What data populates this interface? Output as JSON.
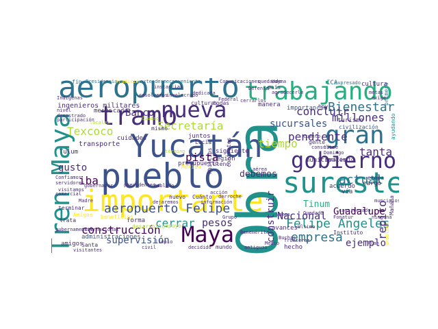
{
  "cloud": {
    "colors": {
      "purple": "#440154",
      "indigo": "#472d7b",
      "blue": "#3b528b",
      "steel": "#2c728e",
      "teal": "#21918c",
      "green": "#28ae80",
      "lime": "#5ec962",
      "yellowgreen": "#addc30",
      "yellow": "#fde725"
    },
    "words": [
      {
        "text": "Obra",
        "color": "teal"
      },
      {
        "text": "aeropuerto",
        "color": "steel"
      },
      {
        "text": "Yucatán",
        "color": "blue"
      },
      {
        "text": "pueblo",
        "color": "blue"
      },
      {
        "text": "importante",
        "color": "yellow"
      },
      {
        "text": "Tren Maya",
        "color": "teal"
      },
      {
        "text": "trabajando",
        "color": "green"
      },
      {
        "text": "tramo",
        "color": "indigo"
      },
      {
        "text": "nueva",
        "color": "indigo"
      },
      {
        "text": "sureste",
        "color": "teal"
      },
      {
        "text": "gobierno",
        "color": "indigo"
      },
      {
        "text": "gran",
        "color": "steel"
      },
      {
        "text": "Maya",
        "color": "purple"
      },
      {
        "text": "Felipe Angeles",
        "color": "teal"
      },
      {
        "text": "construcción",
        "color": "purple"
      },
      {
        "text": "aeropuerto Felipe",
        "color": "blue"
      },
      {
        "text": "empresa",
        "color": "steel"
      },
      {
        "text": "Bienestar",
        "color": "steel"
      },
      {
        "text": "Secretaría",
        "color": "yellowgreen"
      },
      {
        "text": "millones",
        "color": "indigo"
      },
      {
        "text": "Texcoco",
        "color": "yellowgreen"
      },
      {
        "text": "sucursales",
        "color": "blue"
      },
      {
        "text": "tiempo",
        "color": "yellowgreen"
      },
      {
        "text": "pista",
        "color": "purple"
      },
      {
        "text": "Banco",
        "color": "indigo"
      },
      {
        "text": "concluir",
        "color": "indigo"
      },
      {
        "text": "actual",
        "color": "steel"
      },
      {
        "text": "pendiente",
        "color": "indigo"
      },
      {
        "text": "tanta",
        "color": "indigo"
      },
      {
        "text": "Guadalupe",
        "color": "purple"
      },
      {
        "text": "Nacional",
        "color": "indigo"
      },
      {
        "text": "repito",
        "color": "indigo"
      },
      {
        "text": "cerrar",
        "color": "teal"
      },
      {
        "text": "pesos",
        "color": "indigo"
      },
      {
        "text": "supervisión",
        "color": "blue"
      },
      {
        "text": "ejemplo",
        "color": "indigo"
      },
      {
        "text": "gusto",
        "color": "indigo"
      },
      {
        "text": "iba",
        "color": "purple"
      },
      {
        "text": "debemos",
        "color": "indigo"
      },
      {
        "text": "construir",
        "color": "indigo"
      },
      {
        "text": "Tinum",
        "color": "green"
      },
      {
        "text": "ingenieros militares",
        "color": "indigo"
      },
      {
        "text": "administraciones",
        "color": "blue"
      },
      {
        "text": "transporte",
        "color": "indigo"
      },
      {
        "text": "presupuesto",
        "color": "indigo"
      },
      {
        "text": "municipales",
        "color": "indigo"
      },
      {
        "text": "siguiente",
        "color": "indigo"
      },
      {
        "text": "región",
        "color": "indigo"
      },
      {
        "text": "importancia",
        "color": "blue"
      },
      {
        "text": "turismo",
        "color": "indigo"
      },
      {
        "text": "cultura",
        "color": "indigo"
      },
      {
        "text": "civilización",
        "color": "blue"
      },
      {
        "text": "manera",
        "color": "indigo"
      },
      {
        "text": "contratos",
        "color": "indigo"
      },
      {
        "text": "cuidades",
        "color": "indigo"
      },
      {
        "text": "mismo",
        "color": "indigo"
      },
      {
        "text": "Tulum",
        "color": "indigo"
      },
      {
        "text": "juntos",
        "color": "indigo"
      },
      {
        "text": "avances",
        "color": "indigo"
      },
      {
        "text": "hecho",
        "color": "indigo"
      },
      {
        "text": "mundo",
        "color": "indigo"
      },
      {
        "text": "Cuánto",
        "color": "indigo"
      },
      {
        "text": "nuevo",
        "color": "indigo"
      },
      {
        "text": "acuerdo",
        "color": "indigo"
      },
      {
        "text": "vía",
        "color": "indigo"
      },
      {
        "text": "cargo",
        "color": "indigo"
      },
      {
        "text": "etapa",
        "color": "indigo"
      },
      {
        "text": "amigos",
        "color": "indigo"
      },
      {
        "text": "Santa",
        "color": "indigo"
      },
      {
        "text": "forma",
        "color": "indigo"
      },
      {
        "text": "Phillips",
        "color": "indigo"
      },
      {
        "text": "meses",
        "color": "indigo"
      },
      {
        "text": "cada",
        "color": "indigo"
      },
      {
        "text": "Lucía",
        "color": "indigo"
      },
      {
        "text": "beneficios",
        "color": "yellow"
      },
      {
        "text": "desarrollo",
        "color": "yellowgreen"
      },
      {
        "text": "apoyo",
        "color": "yellowgreen"
      },
      {
        "text": "Mérida",
        "color": "yellow"
      },
      {
        "text": "Amigas",
        "color": "yellow"
      },
      {
        "text": "todas",
        "color": "indigo"
      },
      {
        "text": "culturas",
        "color": "indigo"
      },
      {
        "text": "hoy",
        "color": "indigo"
      },
      {
        "text": "internacional",
        "color": "indigo"
      },
      {
        "text": "gubernamental",
        "color": "indigo"
      },
      {
        "text": "trata",
        "color": "indigo"
      },
      {
        "text": "terminar",
        "color": "indigo"
      },
      {
        "text": "visitamos",
        "color": "indigo"
      },
      {
        "text": "servidores",
        "color": "indigo"
      },
      {
        "text": "Madre",
        "color": "indigo"
      },
      {
        "text": "Confiamos",
        "color": "indigo"
      },
      {
        "text": "gobernador",
        "color": "indigo"
      },
      {
        "text": "presidentes",
        "color": "indigo"
      },
      {
        "text": "fin",
        "color": "steel"
      },
      {
        "text": "Presidencia",
        "color": "steel"
      },
      {
        "text": "tradición",
        "color": "yellow"
      },
      {
        "text": "extenderme",
        "color": "steel"
      },
      {
        "text": "conveniente",
        "color": "steel"
      },
      {
        "text": "Comunicaciones",
        "color": "indigo"
      },
      {
        "text": "quedando",
        "color": "indigo"
      },
      {
        "text": "Uayma",
        "color": "indigo"
      },
      {
        "text": "ICA",
        "color": "steel"
      },
      {
        "text": "expresado",
        "color": "steel"
      },
      {
        "text": "primera",
        "color": "steel"
      },
      {
        "text": "exige",
        "color": "indigo"
      },
      {
        "text": "metas",
        "color": "indigo"
      },
      {
        "text": "dedicada",
        "color": "indigo"
      },
      {
        "text": "Federal",
        "color": "indigo"
      },
      {
        "text": "Defensa",
        "color": "indigo"
      },
      {
        "text": "país",
        "color": "indigo"
      },
      {
        "text": "cerrarlos",
        "color": "indigo"
      },
      {
        "text": "Indígenas",
        "color": "indigo"
      },
      {
        "text": "nivel",
        "color": "indigo"
      },
      {
        "text": "participación",
        "color": "indigo"
      },
      {
        "text": "demostrado",
        "color": "indigo"
      },
      {
        "text": "locales",
        "color": "yellowgreen"
      },
      {
        "text": "Ciudad",
        "color": "yellowgreen"
      },
      {
        "text": "término",
        "color": "yellowgreen"
      },
      {
        "text": "instancias",
        "color": "indigo"
      },
      {
        "text": "involucrado",
        "color": "indigo"
      },
      {
        "text": "resolvemos",
        "color": "indigo"
      },
      {
        "text": "tiene",
        "color": "indigo"
      },
      {
        "text": "Domingo",
        "color": "indigo"
      },
      {
        "text": "agradecerle",
        "color": "indigo"
      },
      {
        "text": "gente",
        "color": "indigo"
      },
      {
        "text": "consulte",
        "color": "indigo"
      },
      {
        "text": "cuanto",
        "color": "indigo"
      },
      {
        "text": "manifiesto",
        "color": "indigo"
      },
      {
        "text": "considerado",
        "color": "indigo"
      },
      {
        "text": "Vamos",
        "color": "indigo"
      },
      {
        "text": "Fonatur",
        "color": "indigo"
      },
      {
        "text": "Instituto",
        "color": "indigo"
      },
      {
        "text": "Buchas",
        "color": "indigo"
      },
      {
        "text": "Medio",
        "color": "indigo"
      },
      {
        "text": "fronteras",
        "color": "indigo"
      },
      {
        "text": "antiguas",
        "color": "indigo"
      },
      {
        "text": "Benemérita",
        "color": "indigo"
      },
      {
        "text": "Último",
        "color": "indigo"
      },
      {
        "text": "Quedado",
        "color": "indigo"
      },
      {
        "text": "civil",
        "color": "indigo"
      },
      {
        "text": "decidido",
        "color": "indigo"
      },
      {
        "text": "dejaremos",
        "color": "indigo"
      },
      {
        "text": "información",
        "color": "indigo"
      },
      {
        "text": "derroche",
        "color": "indigo"
      },
      {
        "text": "aérea",
        "color": "indigo"
      },
      {
        "text": "acción",
        "color": "indigo"
      },
      {
        "text": "Grupo",
        "color": "indigo"
      },
      {
        "text": "hablado",
        "color": "indigo"
      },
      {
        "text": "comercial",
        "color": "indigo"
      },
      {
        "text": "limpio",
        "color": "indigo"
      },
      {
        "text": "visitantes",
        "color": "indigo"
      },
      {
        "text": "Mañana",
        "color": "indigo"
      },
      {
        "text": "muncipios",
        "color": "indigo"
      },
      {
        "text": "ayudando",
        "color": "teal"
      },
      {
        "text": "ninguna",
        "color": "indigo"
      },
      {
        "text": "problema",
        "color": "yellow"
      },
      {
        "text": "Plan",
        "color": "indigo"
      },
      {
        "text": "Lleno",
        "color": "indigo"
      },
      {
        "text": "marzo",
        "color": "indigo"
      },
      {
        "text": "Tren",
        "color": "indigo"
      }
    ]
  }
}
